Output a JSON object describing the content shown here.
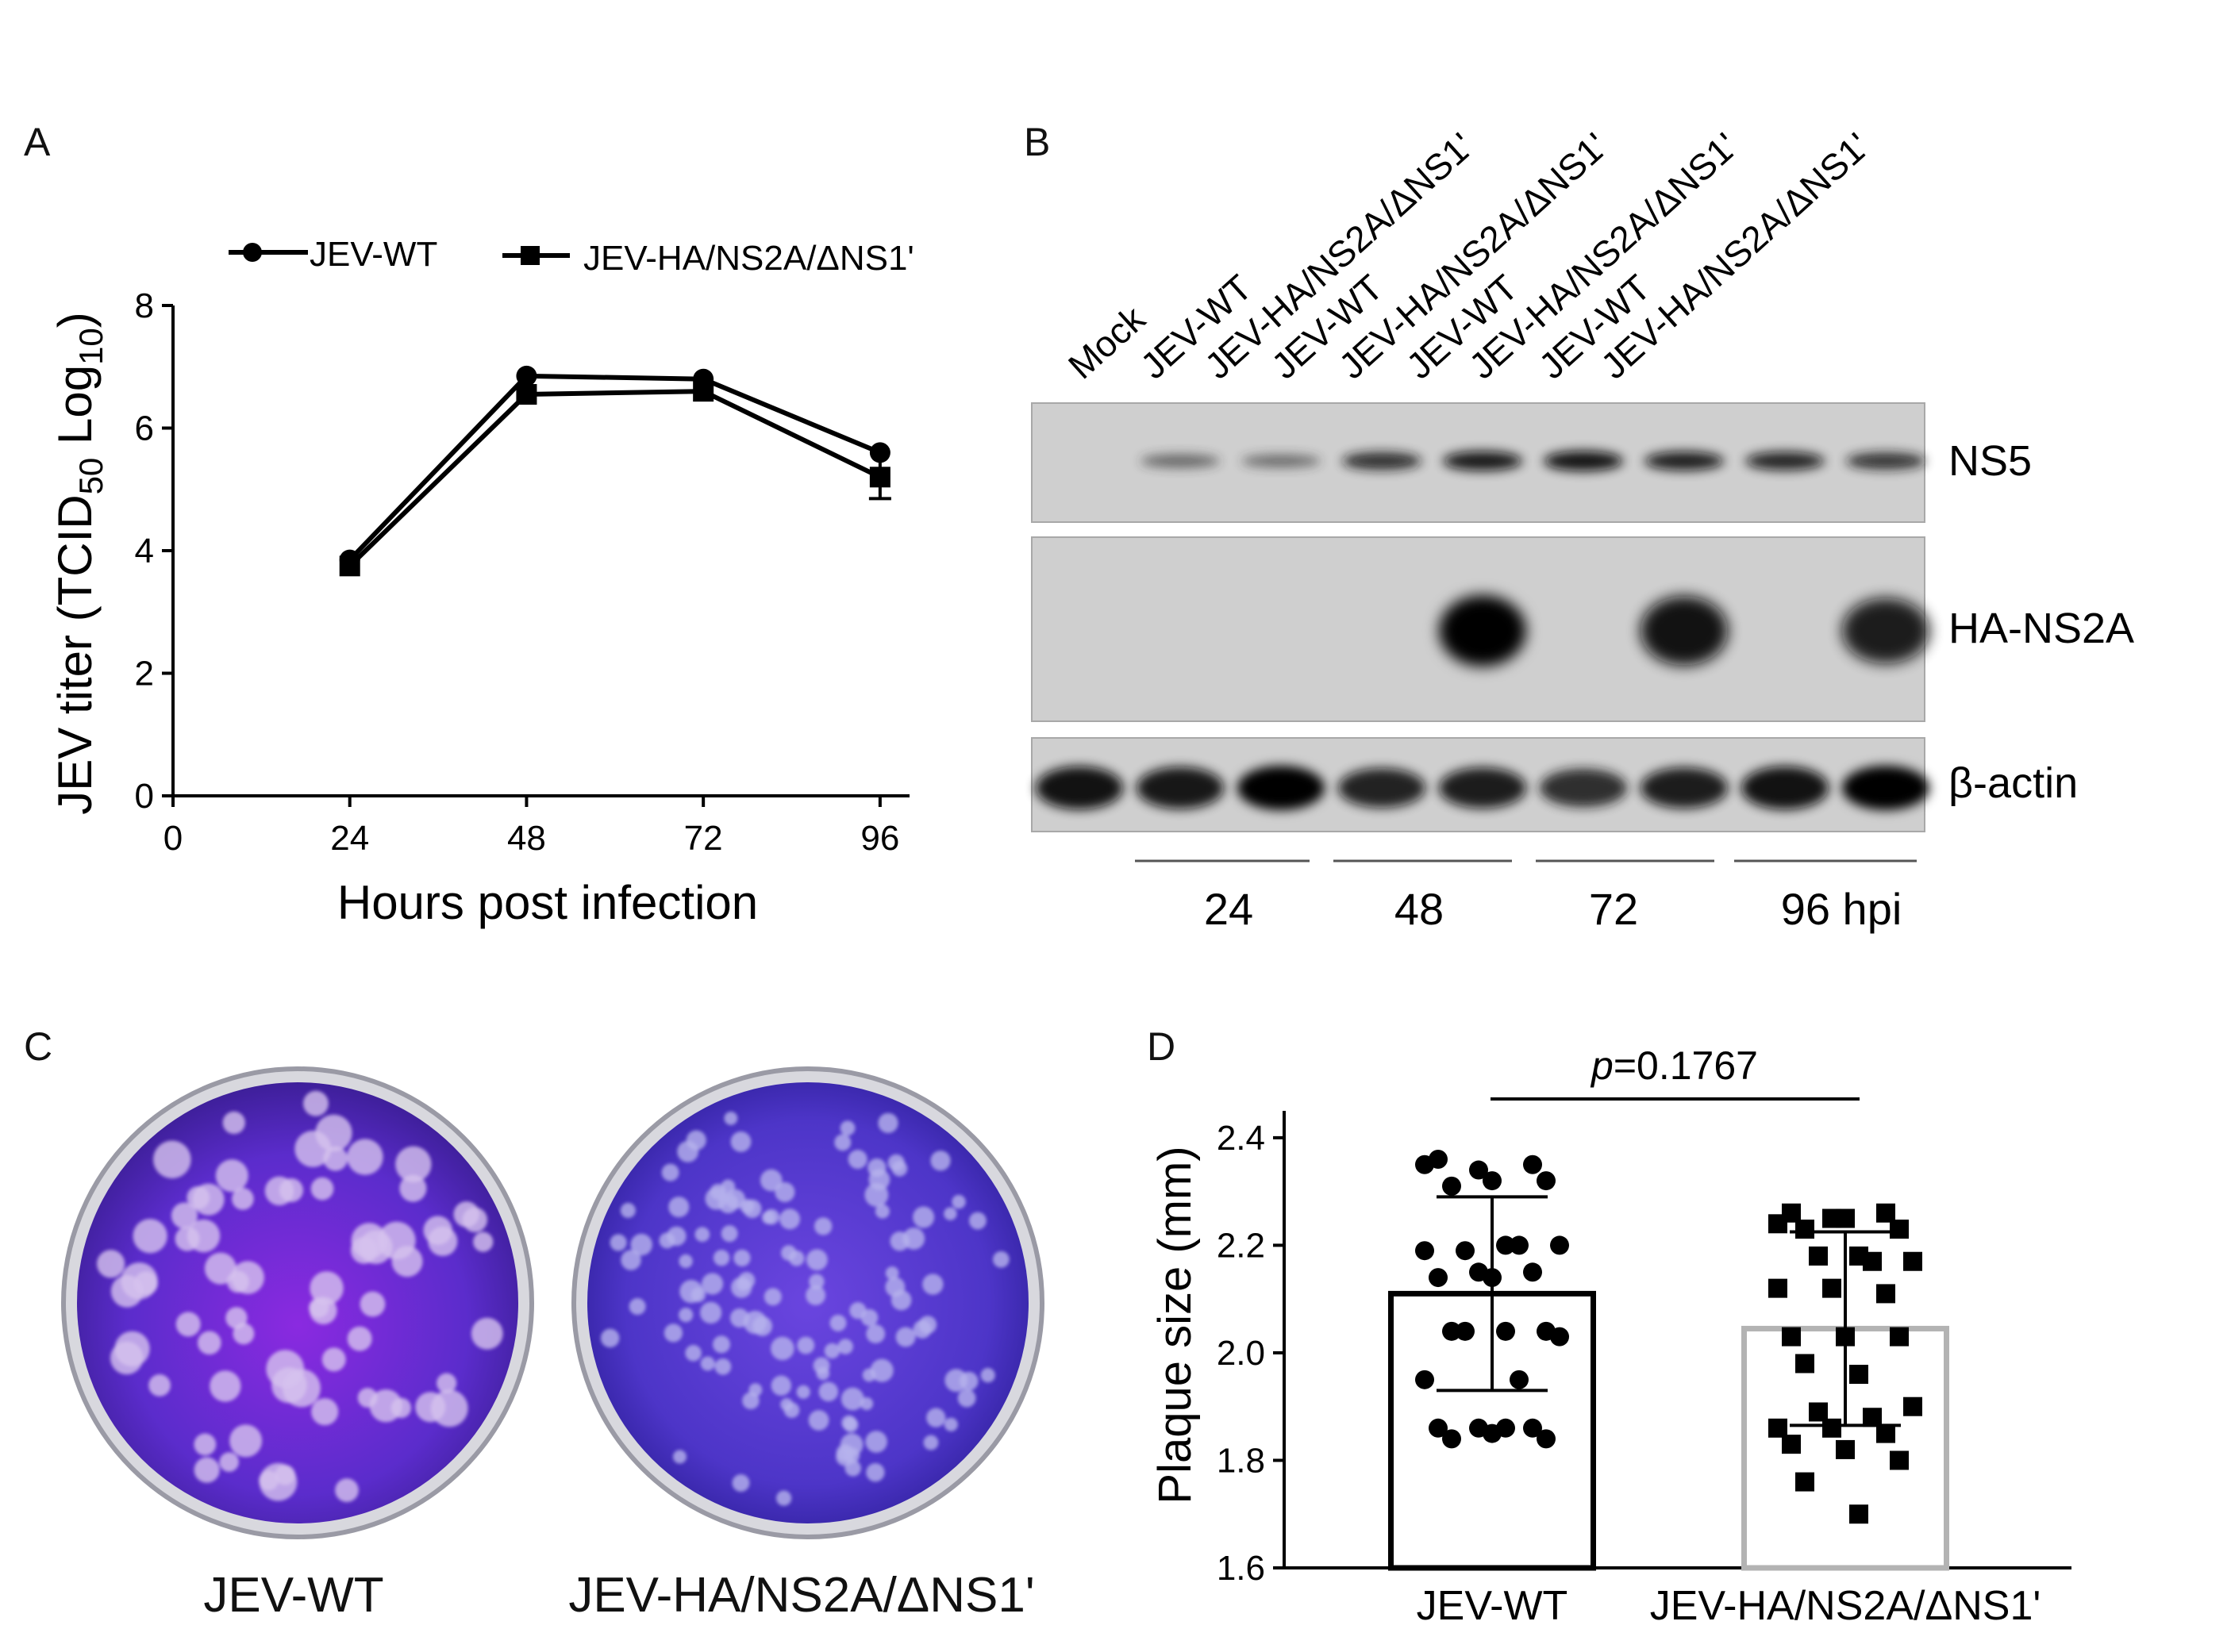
{
  "panels": {
    "A": {
      "letter": "A",
      "chart_data": {
        "type": "line",
        "xlabel": "Hours post infection",
        "ylabel_main": "JEV titer (TCID",
        "ylabel_sub1": "50",
        "ylabel_mid": " Log",
        "ylabel_sub2": "10",
        "ylabel_end": ")",
        "xlim": [
          0,
          100
        ],
        "ylim": [
          0,
          8
        ],
        "xticks": [
          0,
          24,
          48,
          72,
          96
        ],
        "yticks": [
          0,
          2,
          4,
          6,
          8
        ],
        "legend_position": "top",
        "series": [
          {
            "name": "JEV-WT",
            "marker": "circle",
            "x": [
              24,
              48,
              72,
              96
            ],
            "y": [
              3.85,
              6.85,
              6.8,
              5.6
            ],
            "err": [
              0.05,
              0.05,
              0.05,
              0.05
            ]
          },
          {
            "name": "JEV-HA/NS2A/ΔNS1'",
            "marker": "square",
            "x": [
              24,
              48,
              72,
              96
            ],
            "y": [
              3.75,
              6.55,
              6.6,
              5.2
            ],
            "err": [
              0.08,
              0.08,
              0.08,
              0.35
            ]
          }
        ]
      }
    },
    "B": {
      "letter": "B",
      "lane_labels": [
        "Mock",
        "JEV-WT",
        "JEV-HA/NS2A/ΔNS1'",
        "JEV-WT",
        "JEV-HA/NS2A/ΔNS1'",
        "JEV-WT",
        "JEV-HA/NS2A/ΔNS1'",
        "JEV-WT",
        "JEV-HA/NS2A/ΔNS1'"
      ],
      "blots": [
        {
          "label": "NS5",
          "intensity": [
            0,
            0.35,
            0.3,
            0.75,
            0.9,
            0.95,
            0.85,
            0.8,
            0.7
          ]
        },
        {
          "label": "HA-NS2A",
          "intensity": [
            0,
            0,
            0,
            0,
            1,
            0,
            0.95,
            0,
            0.85
          ]
        },
        {
          "label": "β-actin",
          "intensity": [
            0.95,
            0.9,
            1,
            0.8,
            0.85,
            0.75,
            0.85,
            0.95,
            1
          ]
        }
      ],
      "timepoints": [
        "24",
        "48",
        "72",
        "96 hpi"
      ]
    },
    "C": {
      "letter": "C",
      "dishes": [
        {
          "label": "JEV-WT",
          "stain_color": "#6b2fd0"
        },
        {
          "label": "JEV-HA/NS2A/ΔNS1'",
          "stain_color": "#5a3cd6"
        }
      ]
    },
    "D": {
      "letter": "D",
      "chart_data": {
        "type": "bar",
        "categories": [
          "JEV-WT",
          "JEV-HA/NS2A/ΔNS1'"
        ],
        "values": [
          2.11,
          2.045
        ],
        "sd": [
          0.18,
          0.18
        ],
        "ylabel": "Plaque size (mm)",
        "ylim": [
          1.6,
          2.45
        ],
        "yticks": [
          "1.6",
          "1.8",
          "2.0",
          "2.2",
          "2.4"
        ],
        "annotation_p": "p",
        "annotation_value": "=0.1767",
        "bar_colors": [
          "#000000",
          "#b3b3b3"
        ],
        "points": [
          [
            2.35,
            2.34,
            2.35,
            2.36,
            2.32,
            2.32,
            2.31,
            2.2,
            2.2,
            2.19,
            2.2,
            2.19,
            2.15,
            2.15,
            2.14,
            2.14,
            2.04,
            2.04,
            2.04,
            2.03,
            2.04,
            1.95,
            1.95,
            1.86,
            1.86,
            1.86,
            1.85,
            1.84,
            1.84,
            1.86
          ],
          [
            2.24,
            2.25,
            2.26,
            2.26,
            2.25,
            2.23,
            2.23,
            2.18,
            2.17,
            2.18,
            2.17,
            2.12,
            2.12,
            2.11,
            2.03,
            2.03,
            2.03,
            1.98,
            1.96,
            1.9,
            1.89,
            1.88,
            1.86,
            1.86,
            1.85,
            1.83,
            1.82,
            1.8,
            1.76,
            1.7
          ]
        ]
      }
    }
  }
}
